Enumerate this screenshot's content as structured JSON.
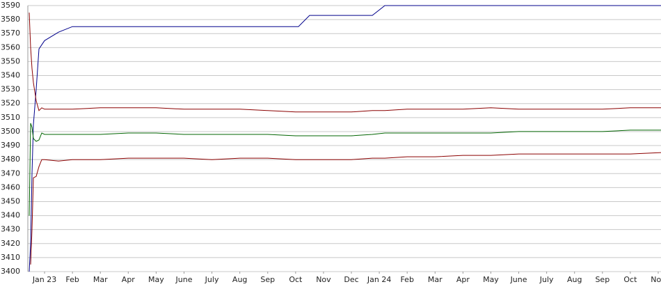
{
  "chart_data": {
    "type": "line",
    "x": [
      -0.55,
      -0.5,
      -0.45,
      -0.4,
      -0.3,
      -0.2,
      -0.1,
      0,
      0.5,
      1,
      2,
      3,
      4,
      5,
      6,
      7,
      8,
      9,
      9.1,
      9.5,
      10,
      11,
      11.75,
      12.2,
      13,
      14,
      15,
      16,
      17,
      18,
      19,
      20,
      21,
      22.1
    ],
    "series": [
      {
        "color": "#00008b",
        "values": [
          3400,
          3420,
          3470,
          3505,
          3530,
          3559,
          3562,
          3565,
          3571,
          3575,
          3575,
          3575,
          3575,
          3575,
          3575,
          3575,
          3575,
          3575,
          3575,
          3583,
          3583,
          3583,
          3583,
          3590,
          3590,
          3590,
          3590,
          3590,
          3590,
          3590,
          3590,
          3590,
          3590,
          3590
        ]
      },
      {
        "color": "#8b0000",
        "values": [
          3585,
          3560,
          3545,
          3535,
          3522,
          3515,
          3517,
          3516,
          3516,
          3516,
          3517,
          3517,
          3517,
          3516,
          3516,
          3516,
          3515,
          3514,
          3514,
          3514,
          3514,
          3514,
          3515,
          3515,
          3516,
          3516,
          3516,
          3517,
          3516,
          3516,
          3516,
          3516,
          3517,
          3517
        ]
      },
      {
        "color": "#006400",
        "values": [
          3440,
          3506,
          3503,
          3495,
          3493,
          3494,
          3499,
          3498,
          3498,
          3498,
          3498,
          3499,
          3499,
          3498,
          3498,
          3498,
          3498,
          3497,
          3497,
          3497,
          3497,
          3497,
          3498,
          3499,
          3499,
          3499,
          3499,
          3499,
          3500,
          3500,
          3500,
          3500,
          3501,
          3501
        ]
      },
      {
        "color": "#8b0000",
        "values": [
          null,
          3405,
          3430,
          3467,
          3468,
          3475,
          3480,
          3480,
          3479,
          3480,
          3480,
          3481,
          3481,
          3481,
          3480,
          3481,
          3481,
          3480,
          3480,
          3480,
          3480,
          3480,
          3481,
          3481,
          3482,
          3482,
          3483,
          3483,
          3484,
          3484,
          3484,
          3484,
          3484,
          3485
        ]
      }
    ],
    "xlim": [
      -0.6,
      22.1
    ],
    "xticks": [
      {
        "value": 0,
        "label": "Jan 23"
      },
      {
        "value": 1,
        "label": "Feb"
      },
      {
        "value": 2,
        "label": "Mar"
      },
      {
        "value": 3,
        "label": "Apr"
      },
      {
        "value": 4,
        "label": "May"
      },
      {
        "value": 5,
        "label": "June"
      },
      {
        "value": 6,
        "label": "July"
      },
      {
        "value": 7,
        "label": "Aug"
      },
      {
        "value": 8,
        "label": "Sep"
      },
      {
        "value": 9,
        "label": "Oct"
      },
      {
        "value": 10,
        "label": "Nov"
      },
      {
        "value": 11,
        "label": "Dec"
      },
      {
        "value": 12,
        "label": "Jan 24"
      },
      {
        "value": 13,
        "label": "Feb"
      },
      {
        "value": 14,
        "label": "Mar"
      },
      {
        "value": 15,
        "label": "Apr"
      },
      {
        "value": 16,
        "label": "May"
      },
      {
        "value": 17,
        "label": "June"
      },
      {
        "value": 18,
        "label": "July"
      },
      {
        "value": 19,
        "label": "Aug"
      },
      {
        "value": 20,
        "label": "Sep"
      },
      {
        "value": 21,
        "label": "Oct"
      },
      {
        "value": 22,
        "label": "Nov"
      }
    ],
    "ylim": [
      3400,
      3590
    ],
    "yticks": [
      3400,
      3410,
      3420,
      3430,
      3440,
      3450,
      3460,
      3470,
      3480,
      3490,
      3500,
      3510,
      3520,
      3530,
      3540,
      3550,
      3560,
      3570,
      3580,
      3590
    ],
    "grid": true
  }
}
